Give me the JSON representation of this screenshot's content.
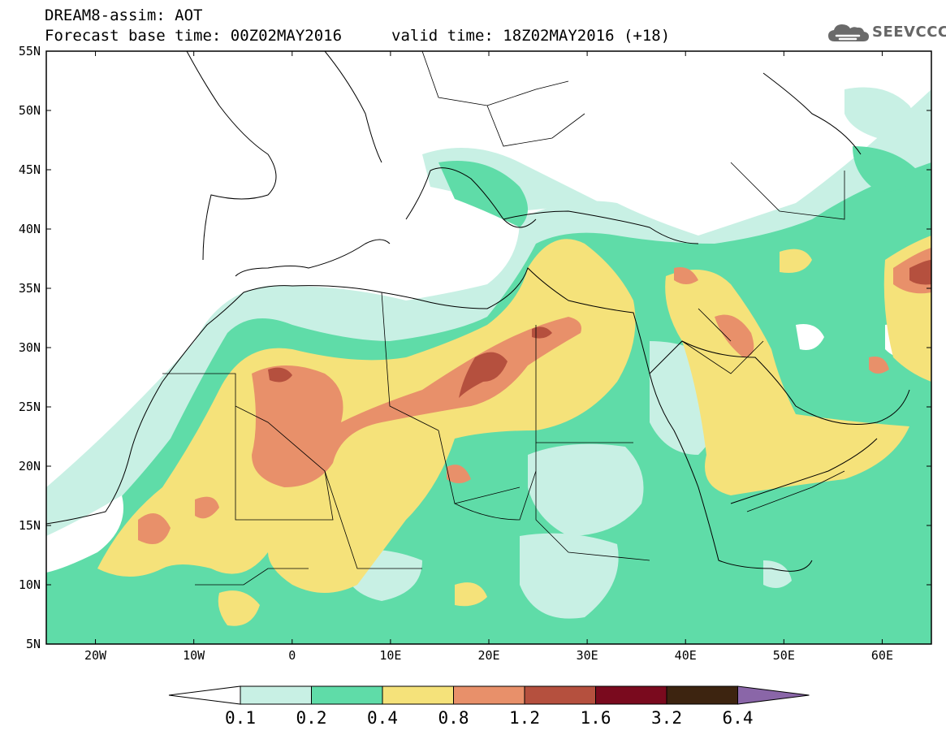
{
  "header": {
    "line1": "DREAM8-assim: AOT",
    "line2": "Forecast base time: 00Z02MAY2016",
    "line3": "valid time: 18Z02MAY2016 (+18)"
  },
  "logo": {
    "text": "SEEVCCC",
    "icon": "cloud-icon"
  },
  "map": {
    "lat_labels": [
      "55N",
      "50N",
      "45N",
      "40N",
      "35N",
      "30N",
      "25N",
      "20N",
      "15N",
      "10N",
      "5N"
    ],
    "lon_labels": [
      "20W",
      "10W",
      "0",
      "10E",
      "20E",
      "30E",
      "40E",
      "50E",
      "60E"
    ]
  },
  "colorbar": {
    "labels": [
      "0.1",
      "0.2",
      "0.4",
      "0.8",
      "1.2",
      "1.6",
      "3.2",
      "6.4"
    ],
    "colors": [
      "#ffffff",
      "#c8f0e4",
      "#5fdca8",
      "#f5e27a",
      "#e8906a",
      "#b5503e",
      "#7a0a1e",
      "#3d2410",
      "#8a66a8"
    ]
  },
  "chart_data": {
    "type": "heatmap",
    "variable": "AOT",
    "lat_range": [
      "5N",
      "55N"
    ],
    "lon_range": [
      "25W",
      "65E"
    ]
  }
}
